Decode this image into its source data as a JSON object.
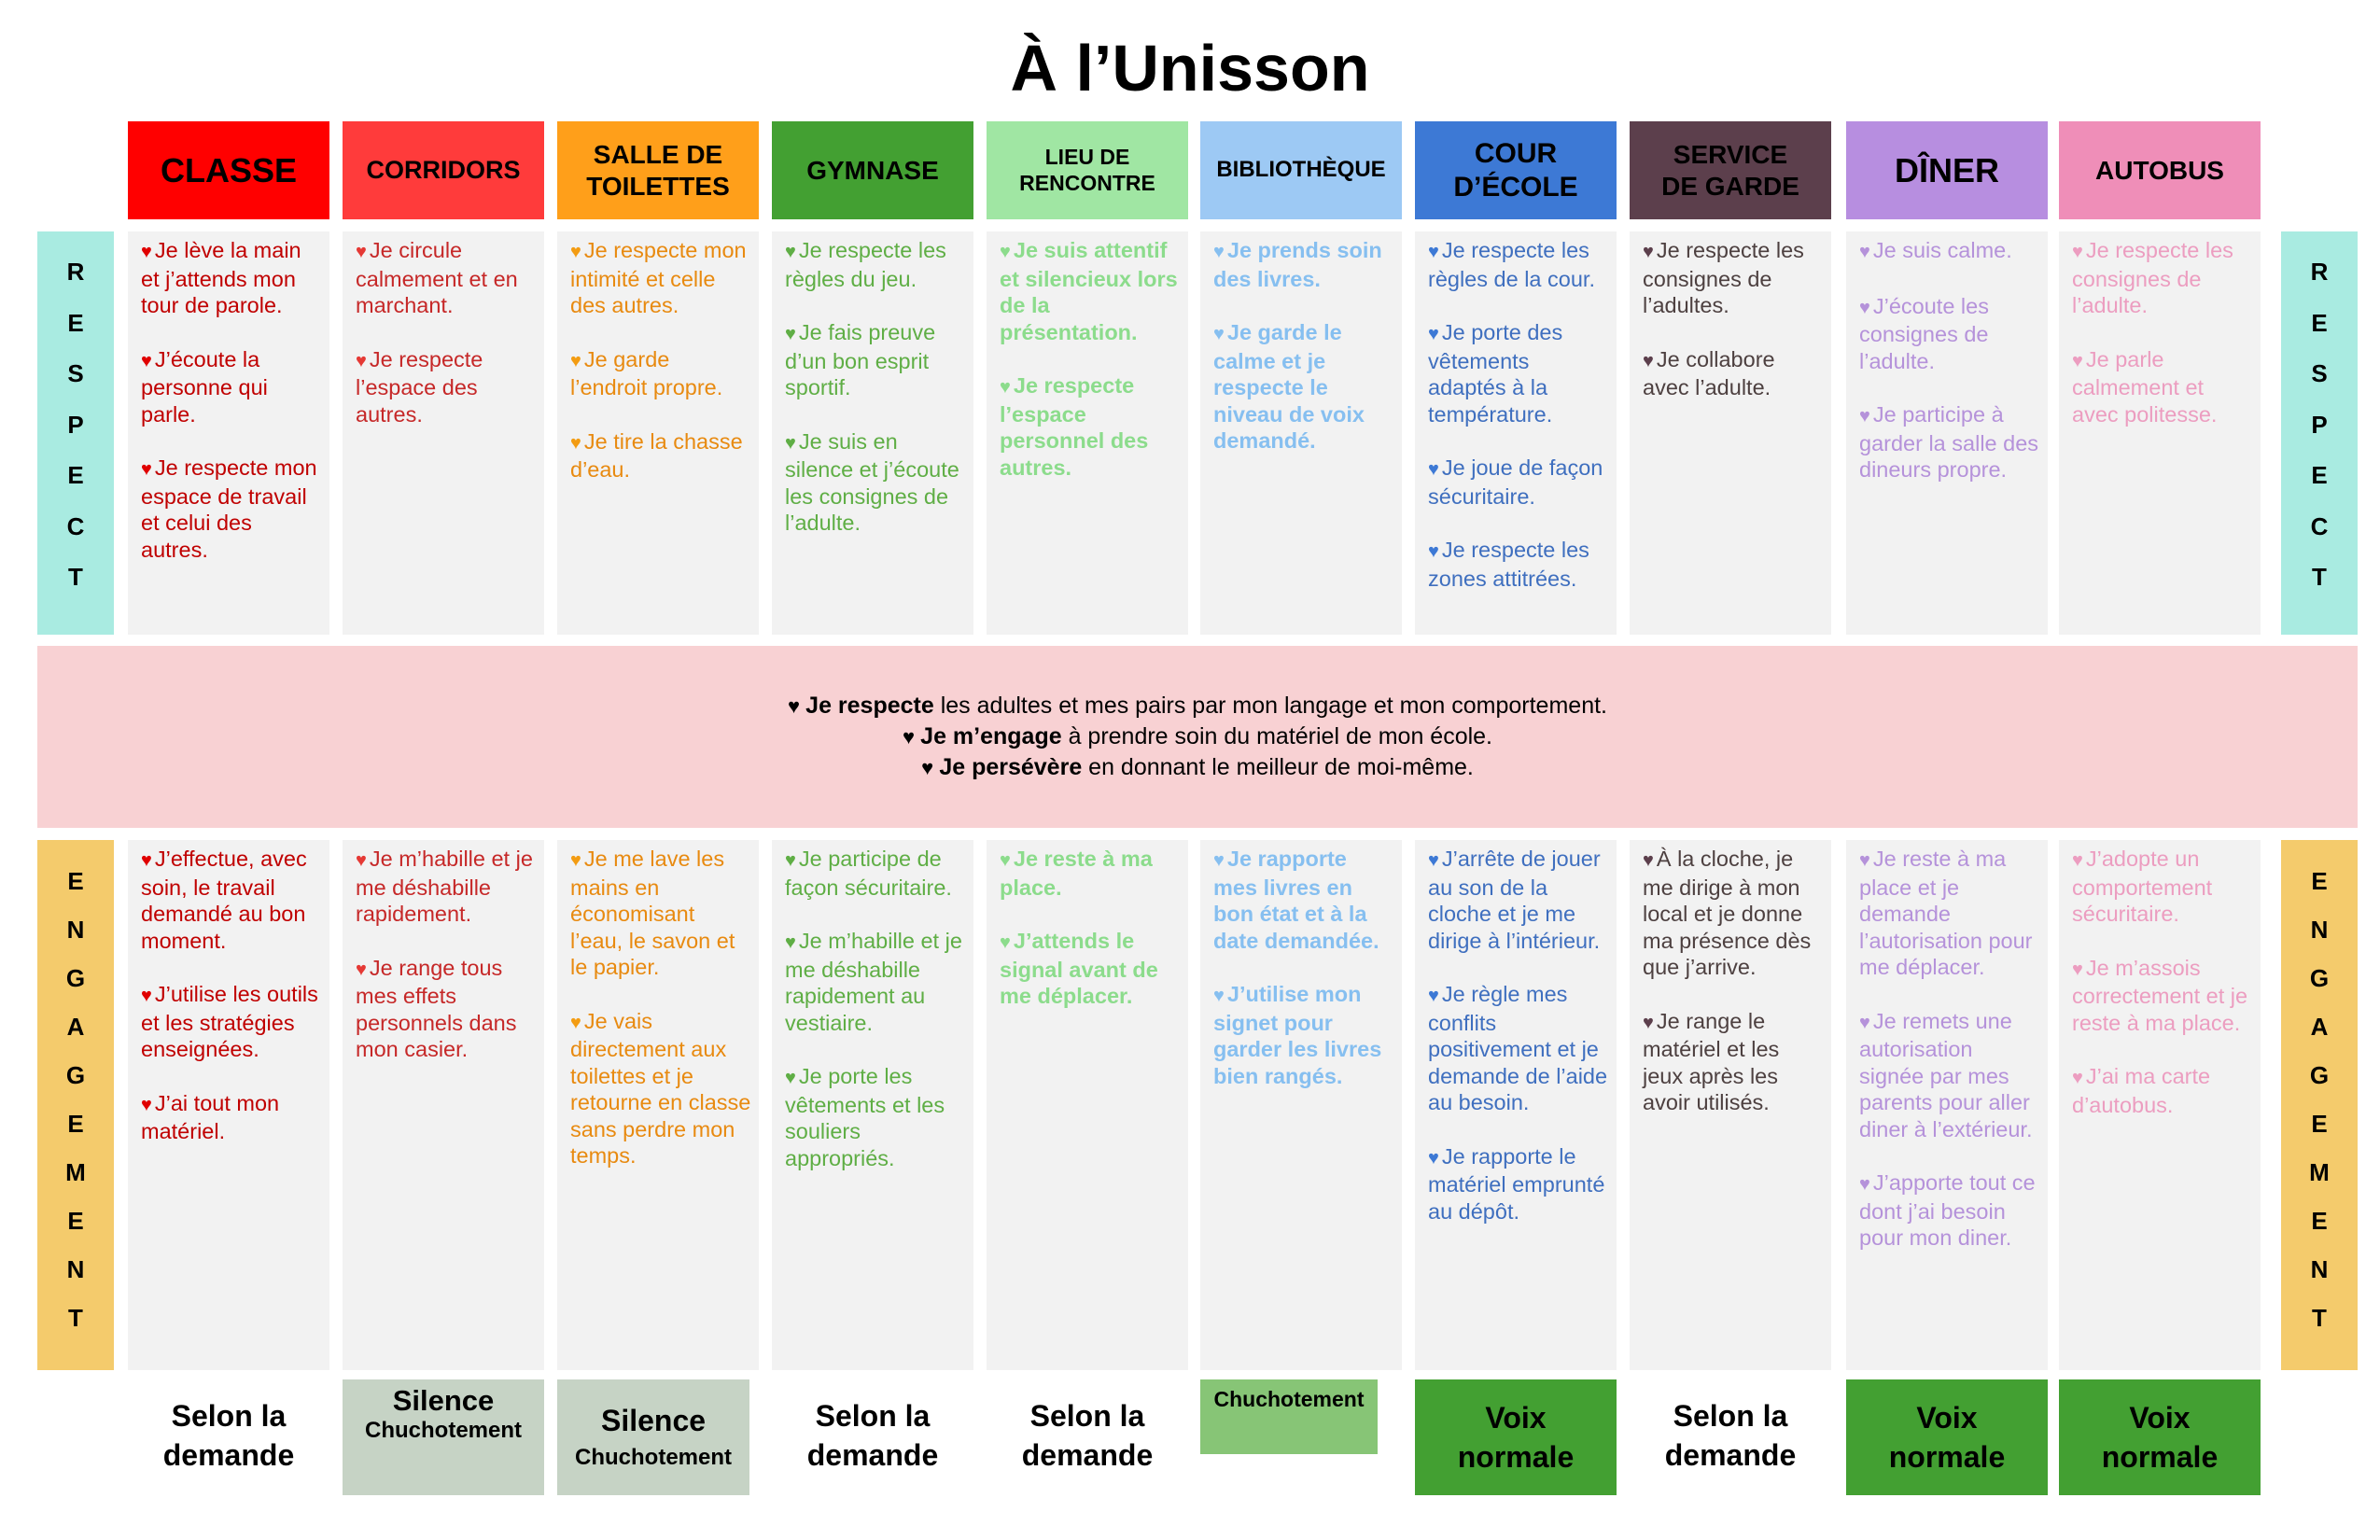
{
  "title": "À l’Unisson",
  "side_labels": {
    "respect": "RESPECT",
    "engagement": "ENGAGEMENT"
  },
  "columns": [
    {
      "header": [
        "CLASSE"
      ],
      "header_bg": "#ff0000",
      "header_color": "#000000",
      "header_size": "36px",
      "text_color": "#c00000",
      "heart_color": "#e00000",
      "respect": [
        "Je lève la main et j’attends mon tour de parole.",
        "J’écoute la personne qui parle.",
        "Je respecte mon espace de travail et celui des autres."
      ],
      "engagement": [
        "J’effectue, avec soin, le travail demandé au bon moment.",
        "J’utilise les outils et les stratégies enseignées.",
        "J’ai tout mon matériel."
      ],
      "footer": [
        "Selon la",
        "demande"
      ],
      "footer_bg": "",
      "footer_style": "plain"
    },
    {
      "header": [
        "CORRIDORS"
      ],
      "header_bg": "#ff3b3b",
      "header_color": "#000000",
      "header_size": "27px",
      "text_color": "#c62828",
      "heart_color": "#e53935",
      "respect": [
        "Je circule calmement et en marchant.",
        "Je respecte l’espace des autres."
      ],
      "engagement": [
        "Je m’habille et je me déshabille rapidement.",
        "Je range tous mes effets personnels dans mon casier."
      ],
      "footer": [
        "Silence",
        "Chuchotement"
      ],
      "footer_bg": "#c6d3c5",
      "footer_style": "silence-top"
    },
    {
      "header": [
        "SALLE DE",
        "TOILETTES"
      ],
      "header_bg": "#ff9f1a",
      "header_color": "#000000",
      "header_size": "28px",
      "text_color": "#e88a10",
      "heart_color": "#f39c12",
      "respect": [
        "Je respecte mon intimité et celle des autres.",
        "Je garde l’endroit propre.",
        "Je tire la chasse d’eau."
      ],
      "engagement": [
        "Je me lave les mains en économisant l’eau, le savon et le papier.",
        "Je vais directement aux toilettes et je retourne en classe sans perdre mon temps."
      ],
      "footer": [
        "Silence",
        "Chuchotement"
      ],
      "footer_bg": "#c6d3c5",
      "footer_style": "silence"
    },
    {
      "header": [
        "GYMNASE"
      ],
      "header_bg": "#43a032",
      "header_color": "#000000",
      "header_size": "28px",
      "text_color": "#5fae45",
      "heart_color": "#5fae45",
      "respect": [
        "Je respecte les règles du jeu.",
        "Je fais preuve d’un bon esprit sportif.",
        "Je suis en silence et j’écoute les consignes de l’adulte."
      ],
      "engagement": [
        "Je participe de façon sécuritaire.",
        "Je m’habille et je me déshabille rapidement au vestiaire.",
        "Je porte les vêtements et les souliers appropriés."
      ],
      "footer": [
        "Selon la",
        "demande"
      ],
      "footer_bg": "",
      "footer_style": "plain"
    },
    {
      "header": [
        "LIEU DE",
        "RENCONTRE"
      ],
      "header_bg": "#a0e6a3",
      "header_color": "#000000",
      "header_size": "23px",
      "text_color": "#8cdc8c",
      "heart_color": "#8cdc8c",
      "bold_text": true,
      "respect": [
        "Je suis attentif et silencieux lors de la présentation.",
        "Je respecte l’espace personnel des autres."
      ],
      "engagement": [
        "Je reste à ma place.",
        "J’attends le signal avant de me déplacer."
      ],
      "footer": [
        "Selon la",
        "demande"
      ],
      "footer_bg": "",
      "footer_style": "plain"
    },
    {
      "header": [
        "BIBLIOTHÈQUE"
      ],
      "header_bg": "#9dc9f4",
      "header_color": "#000000",
      "header_size": "24px",
      "text_color": "#86bff0",
      "heart_color": "#86bff0",
      "bold_text": true,
      "respect": [
        "Je prends soin des livres.",
        "Je garde le calme et je respecte le niveau de voix demandé."
      ],
      "engagement": [
        "Je rapporte mes livres en bon état et à la date demandée.",
        "J’utilise mon signet pour garder les livres bien rangés."
      ],
      "footer": [
        "Chuchotement"
      ],
      "footer_bg": "#87c576",
      "footer_style": "chuchotement"
    },
    {
      "header": [
        "COUR",
        "D’ÉCOLE"
      ],
      "header_bg": "#3d79d5",
      "header_color": "#000000",
      "header_size": "30px",
      "text_color": "#3f6fbf",
      "heart_color": "#3d79d5",
      "respect": [
        "Je respecte les règles de la cour.",
        "Je porte des vêtements adaptés à la température.",
        "Je joue de façon sécuritaire.",
        "Je respecte les zones attitrées."
      ],
      "engagement": [
        "J’arrête de jouer au son de la cloche et je me dirige à l’intérieur.",
        "Je règle mes conflits positivement et je demande de l’aide au besoin.",
        "Je rapporte le matériel emprunté au dépôt."
      ],
      "footer": [
        "Voix",
        "normale"
      ],
      "footer_bg": "#43a032",
      "footer_style": "voix"
    },
    {
      "header": [
        "SERVICE",
        "DE GARDE"
      ],
      "header_bg": "#5c3f4c",
      "header_color": "#000000",
      "header_size": "28px",
      "text_color": "#4d4040",
      "heart_color": "#5c3f4c",
      "respect": [
        "Je respecte les consignes de l’adultes.",
        "Je collabore avec l’adulte."
      ],
      "engagement": [
        "À la cloche, je me dirige à mon local et je donne ma présence dès que j’arrive.",
        "Je range le matériel et les jeux après les avoir utilisés."
      ],
      "footer": [
        "Selon la",
        "demande"
      ],
      "footer_bg": "",
      "footer_style": "plain"
    },
    {
      "header": [
        "DÎNER"
      ],
      "header_bg": "#b78ee0",
      "header_color": "#000000",
      "header_size": "36px",
      "text_color": "#b592da",
      "heart_color": "#b592da",
      "respect": [
        "Je suis calme.",
        "J’écoute les consignes de l’adulte.",
        "Je participe à garder la salle des dineurs propre."
      ],
      "engagement": [
        "Je reste à ma place et je demande l’autorisation pour me déplacer.",
        "Je remets une autorisation signée par mes parents pour aller diner à l’extérieur.",
        "J’apporte tout ce dont j’ai besoin pour mon diner."
      ],
      "footer": [
        "Voix",
        "normale"
      ],
      "footer_bg": "#43a032",
      "footer_style": "voix"
    },
    {
      "header": [
        "AUTOBUS"
      ],
      "header_bg": "#ef8eb8",
      "header_color": "#000000",
      "header_size": "28px",
      "text_color": "#ec9dc0",
      "heart_color": "#ec9dc0",
      "respect": [
        "Je respecte les consignes de l’adulte.",
        "Je parle calmement et avec politesse."
      ],
      "engagement": [
        "J’adopte un comportement sécuritaire.",
        "Je m’assois correctement et je reste à ma place.",
        "J’ai ma carte d’autobus."
      ],
      "footer": [
        "Voix",
        "normale"
      ],
      "footer_bg": "#43a032",
      "footer_style": "voix"
    }
  ],
  "band": [
    {
      "bold": "Je respecte",
      "rest": " les adultes et mes pairs par mon langage et mon comportement."
    },
    {
      "bold": "Je m’engage",
      "rest": " à prendre soin du matériel de mon école."
    },
    {
      "bold": "Je persévère",
      "rest": " en donnant le meilleur de moi-même."
    }
  ],
  "heart_glyph": "♥"
}
